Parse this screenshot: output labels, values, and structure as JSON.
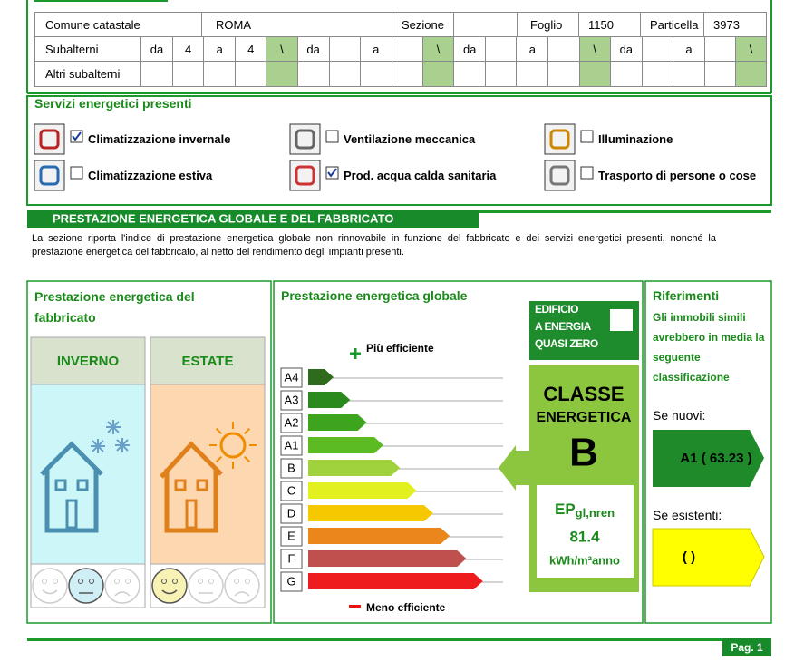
{
  "cadastre": {
    "row": [
      "Comune catastale",
      "ROMA",
      "Sezione",
      null,
      "Foglio",
      "1150",
      "Particella",
      "3973"
    ],
    "subalterni_label": "Subalterni",
    "subalterni": [
      [
        "da",
        "4",
        "a",
        "4",
        "\\"
      ],
      [
        "da",
        null,
        "a",
        null,
        "\\"
      ],
      [
        "da",
        null,
        "a",
        null,
        "\\"
      ],
      [
        "da",
        null,
        "a",
        null,
        "\\"
      ]
    ],
    "altri_label": "Altri subalterni"
  },
  "services": {
    "title": "Servizi energetici presenti",
    "items": [
      {
        "label": "Climatizzazione invernale",
        "checked": true
      },
      {
        "label": "Ventilazione meccanica",
        "checked": false
      },
      {
        "label": "Illuminazione",
        "checked": false
      },
      {
        "label": "Climatizzazione estiva",
        "checked": false
      },
      {
        "label": "Prod. acqua calda sanitaria",
        "checked": true
      },
      {
        "label": "Trasporto di persone o cose",
        "checked": false
      }
    ]
  },
  "section": {
    "title": "PRESTAZIONE ENERGETICA GLOBALE E DEL FABBRICATO",
    "description": "La sezione riporta l'indice di prestazione energetica globale non rinnovabile in funzione del fabbricato e dei servizi energetici presenti, nonché la prestazione energetica del fabbricato, al netto del rendimento degli impianti presenti."
  },
  "fabbricato": {
    "title": "Prestazione energetica del fabbricato",
    "inverno": {
      "label": "INVERNO",
      "selected_face": 1
    },
    "estate": {
      "label": "ESTATE",
      "selected_face": 0
    }
  },
  "globale": {
    "title": "Prestazione energetica globale",
    "more_efficient": "Più efficiente",
    "less_efficient": "Meno efficiente",
    "classes": [
      "A4",
      "A3",
      "A2",
      "A1",
      "B",
      "C",
      "D",
      "E",
      "F",
      "G"
    ],
    "colors": [
      "#2e6b1c",
      "#2a8a1e",
      "#3da41e",
      "#5cbb22",
      "#9fd23c",
      "#e2f020",
      "#f5c800",
      "#e9861c",
      "#c0504d",
      "#ee1c1c"
    ],
    "nzeb": {
      "label": [
        "EDIFICIO",
        "A ENERGIA",
        "QUASI ZERO"
      ],
      "checked": false
    },
    "classe_label": [
      "CLASSE",
      "ENERGETICA"
    ],
    "classe": "B",
    "ep_label": "EP",
    "ep_sub": "gl,nren",
    "ep_value": "81.4",
    "ep_unit": "kWh/m²anno"
  },
  "riferimenti": {
    "title": "Riferimenti",
    "text": "Gli immobili simili avrebbero in media la seguente classificazione",
    "nuovi_label": "Se nuovi:",
    "nuovi": "A1 ( 63.23 )",
    "esistenti_label": "Se esistenti:",
    "esistenti": "( )"
  },
  "footer": {
    "page": "Pag. 1"
  }
}
